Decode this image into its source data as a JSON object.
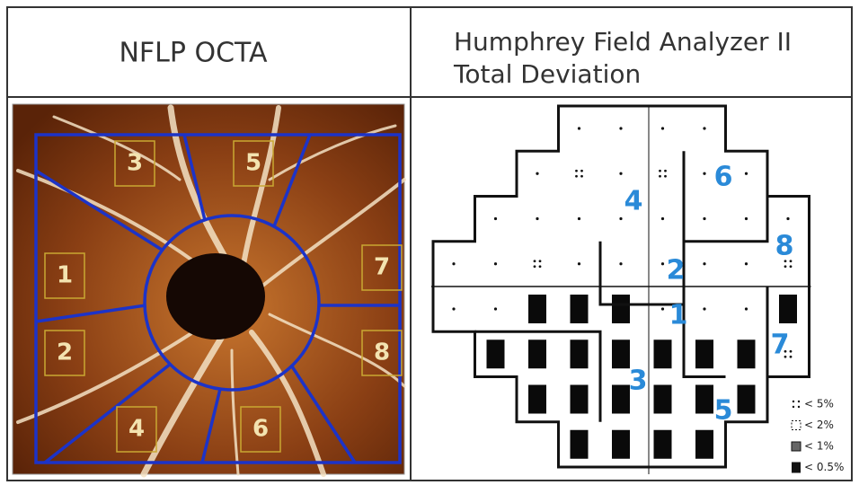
{
  "header": {
    "left": "NFLP OCTA",
    "right_line1": "Humphrey Field Analyzer II",
    "right_line2": "Total Deviation"
  },
  "octa_sectors": [
    "1",
    "2",
    "3",
    "4",
    "5",
    "6",
    "7",
    "8"
  ],
  "field_regions": [
    "1",
    "2",
    "3",
    "4",
    "5",
    "6",
    "7",
    "8"
  ],
  "legend": [
    "< 5%",
    "< 2%",
    "< 1%",
    "< 0.5%"
  ]
}
